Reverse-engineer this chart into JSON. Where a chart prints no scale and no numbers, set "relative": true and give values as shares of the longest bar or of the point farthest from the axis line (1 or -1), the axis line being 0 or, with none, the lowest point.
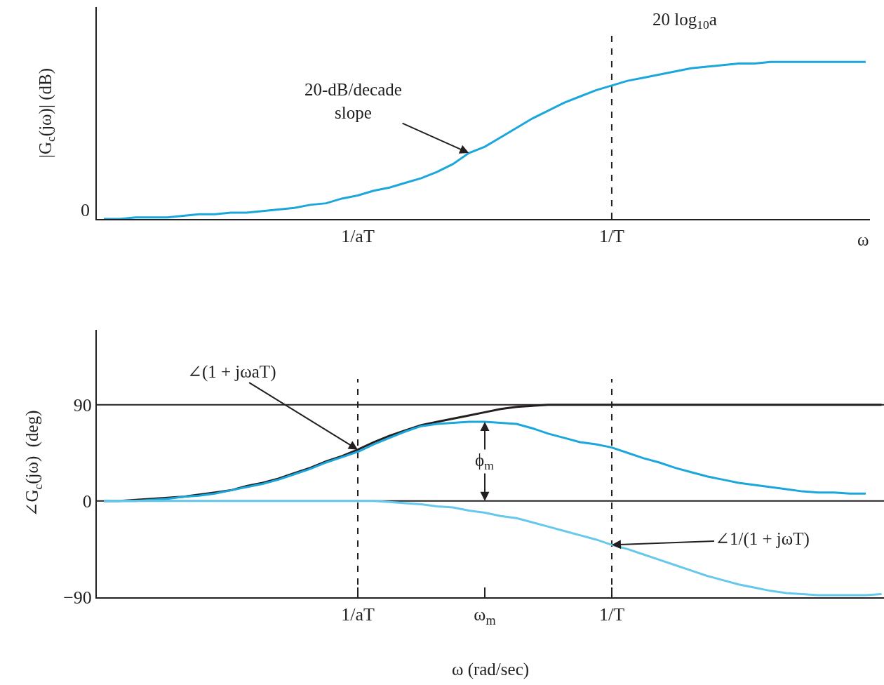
{
  "chart_data": [
    {
      "type": "line",
      "ylabel": "|G$_{c}$(jω)| (dB)",
      "xlabel": "ω",
      "relative": true,
      "grid": false,
      "categories": [
        null,
        null,
        null,
        null,
        null,
        null,
        null,
        null,
        null,
        null,
        null,
        null,
        null,
        null,
        null,
        null,
        "1/aT",
        null,
        null,
        null,
        null,
        null,
        null,
        null,
        null,
        null,
        null,
        null,
        null,
        null,
        null,
        null,
        "1/T",
        null,
        null,
        null,
        null,
        null,
        null,
        null,
        null,
        null,
        null,
        null,
        null,
        null,
        null,
        null,
        null
      ],
      "series": [
        {
          "color": "#1ba6dc",
          "values": [
            0,
            0,
            0.01,
            0.01,
            0.01,
            0.02,
            0.03,
            0.03,
            0.04,
            0.04,
            0.05,
            0.06,
            0.07,
            0.09,
            0.1,
            0.13,
            0.15,
            0.18,
            0.2,
            0.23,
            0.26,
            0.3,
            0.35,
            0.42,
            0.46,
            0.52,
            0.58,
            0.64,
            0.69,
            0.74,
            0.78,
            0.82,
            0.85,
            0.88,
            0.9,
            0.92,
            0.94,
            0.96,
            0.97,
            0.98,
            0.99,
            0.99,
            1,
            1,
            1,
            1,
            1,
            1,
            1
          ]
        }
      ],
      "ref_lines": [
        {
          "axis": "x",
          "value": "1/T",
          "line_style": "dashed",
          "color": "#231f20"
        }
      ],
      "annotations": [
        "20 log$_{10}$a",
        "20-dB/decade\nslope",
        "0"
      ]
    },
    {
      "type": "line",
      "ylabel": "∠G$_{c}$(jω)  (deg)",
      "xlabel": "ω (rad/sec)",
      "ylim": [
        -90,
        160
      ],
      "yticks": [
        -90,
        0,
        90
      ],
      "grid": false,
      "categories": [
        null,
        null,
        null,
        null,
        null,
        null,
        null,
        null,
        null,
        null,
        null,
        null,
        null,
        null,
        null,
        null,
        "1/aT",
        null,
        null,
        null,
        null,
        null,
        null,
        null,
        "ω$_{m}$",
        null,
        null,
        null,
        null,
        null,
        null,
        null,
        "1/T",
        null,
        null,
        null,
        null,
        null,
        null,
        null,
        null,
        null,
        null,
        null,
        null,
        null,
        null,
        null,
        null,
        null
      ],
      "series": [
        {
          "color": "#231f20",
          "values": [
            0,
            0,
            1,
            2,
            3,
            4,
            6,
            8,
            10,
            14,
            17,
            21,
            26,
            31,
            37,
            42,
            48,
            55,
            61,
            66,
            71,
            74,
            77,
            80,
            83,
            86,
            88,
            89,
            90,
            90,
            90,
            90,
            90,
            90,
            90,
            90,
            90,
            90,
            90,
            90,
            90,
            90,
            90,
            90,
            90,
            90,
            90,
            90,
            90,
            90
          ]
        },
        {
          "color": "#1ba6dc",
          "values": [
            0,
            0,
            0,
            1,
            2,
            4,
            5,
            7,
            10,
            13,
            16,
            20,
            25,
            30,
            36,
            41,
            46,
            53,
            59,
            65,
            70,
            72,
            73,
            74,
            74,
            73,
            72,
            68,
            63,
            59,
            55,
            53,
            50,
            45,
            40,
            36,
            31,
            27,
            23,
            20,
            17,
            15,
            13,
            11,
            9,
            8,
            8,
            7,
            7,
            null
          ]
        },
        {
          "color": "#66c8ec",
          "values": [
            0,
            0,
            0,
            0,
            0,
            0,
            0,
            0,
            0,
            0,
            0,
            0,
            0,
            0,
            0,
            0,
            0,
            0,
            -1,
            -2,
            -3,
            -5,
            -6,
            -9,
            -11,
            -14,
            -16,
            -20,
            -24,
            -28,
            -32,
            -36,
            -41,
            -45,
            -50,
            -55,
            -60,
            -65,
            -70,
            -74,
            -78,
            -81,
            -84,
            -86,
            -87,
            -88,
            -88,
            -88,
            -88,
            -87
          ]
        }
      ],
      "ref_lines": [
        {
          "axis": "y",
          "value": 90,
          "color": "#231f20"
        },
        {
          "axis": "y",
          "value": 0,
          "color": "#231f20"
        },
        {
          "axis": "x",
          "value": "1/aT",
          "line_style": "dashed",
          "color": "#231f20"
        },
        {
          "axis": "x",
          "value": "1/T",
          "line_style": "dashed",
          "color": "#231f20"
        }
      ],
      "annotations": [
        {
          "text": "ϕ$_{m}$",
          "x": "ω$_{m}$",
          "y": 74
        },
        {
          "text": "∠(1 + jωaT)",
          "x": "1/aT",
          "y": 48
        },
        {
          "text": "∠1/(1 + jωT)",
          "x": "1/T",
          "y": -41
        }
      ]
    }
  ]
}
